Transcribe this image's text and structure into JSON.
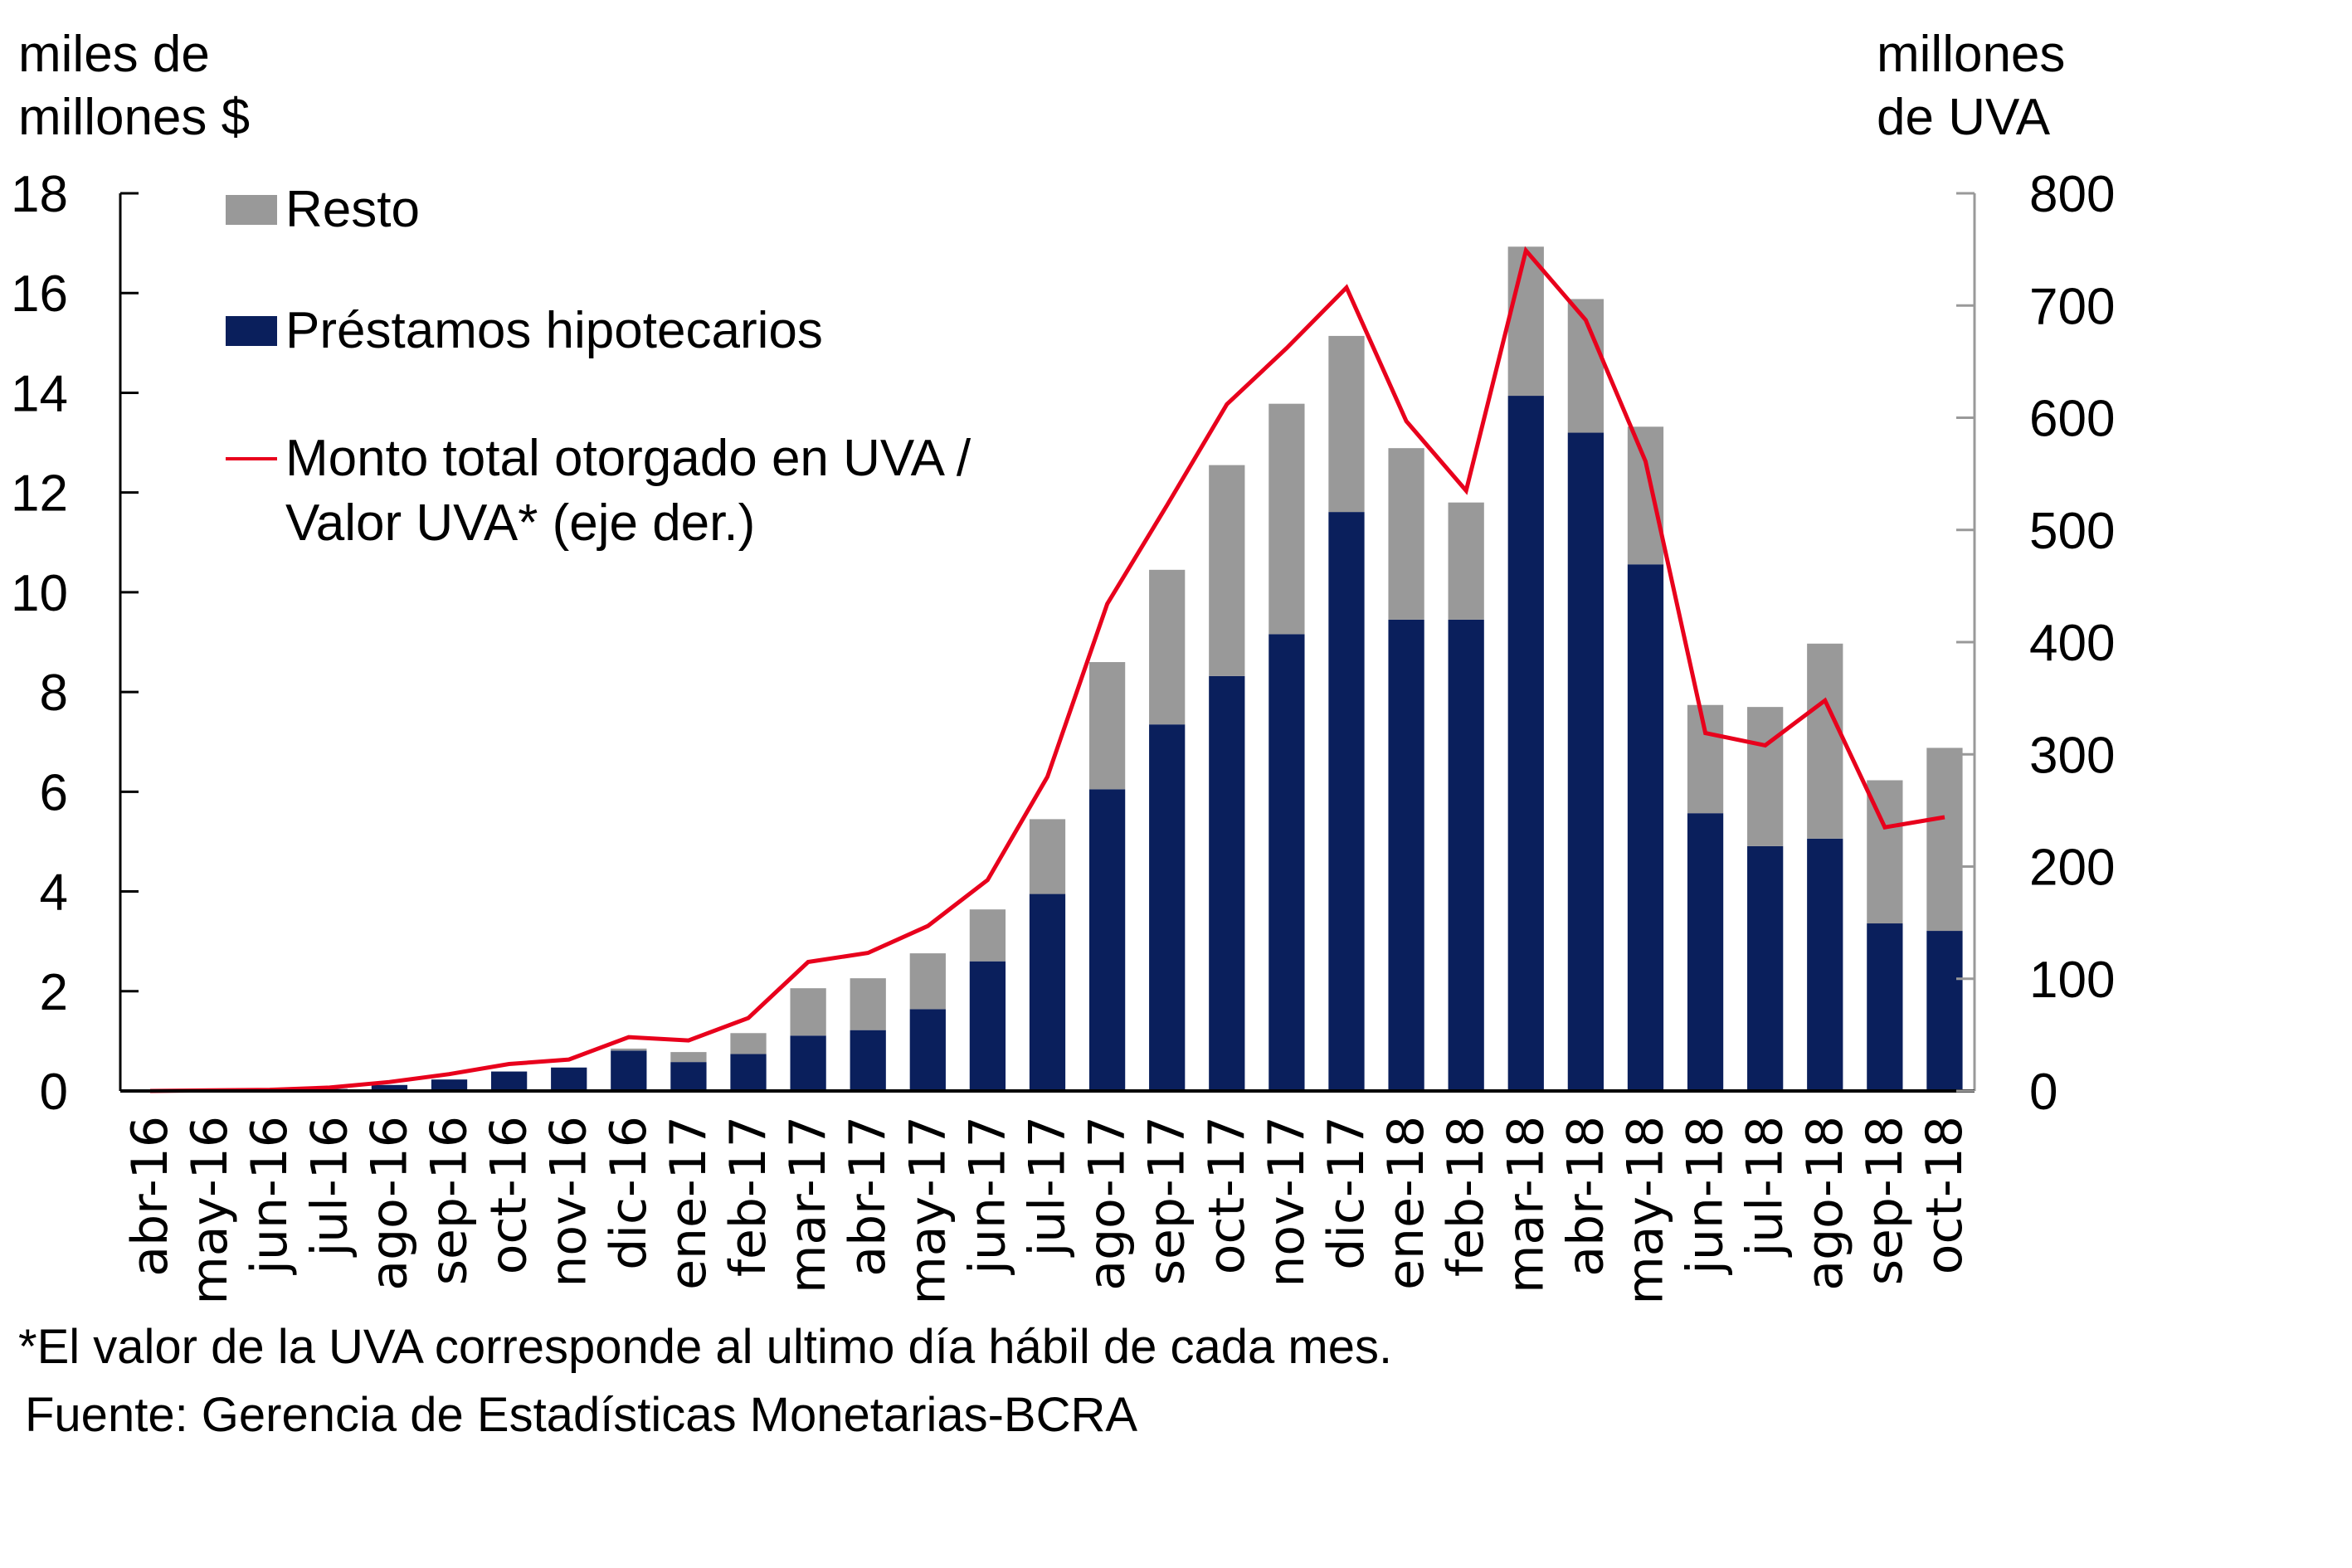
{
  "chart_data": {
    "type": "bar",
    "subtype": "stacked bar with line on secondary axis",
    "title": "",
    "y_left_label": [
      "miles de",
      "millones $"
    ],
    "y_right_label": [
      "millones",
      "de UVA"
    ],
    "ylim_left": [
      0,
      18
    ],
    "yticks_left": [
      0,
      2,
      4,
      6,
      8,
      10,
      12,
      14,
      16,
      18
    ],
    "ylim_right": [
      0,
      800
    ],
    "yticks_right": [
      0,
      100,
      200,
      300,
      400,
      500,
      600,
      700,
      800
    ],
    "grid": false,
    "legend_position": "top-left",
    "categories": [
      "abr-16",
      "may-16",
      "jun-16",
      "jul-16",
      "ago-16",
      "sep-16",
      "oct-16",
      "nov-16",
      "dic-16",
      "ene-17",
      "feb-17",
      "mar-17",
      "abr-17",
      "may-17",
      "jun-17",
      "jul-17",
      "ago-17",
      "sep-17",
      "oct-17",
      "nov-17",
      "dic-17",
      "ene-18",
      "feb-18",
      "mar-18",
      "abr-18",
      "may-18",
      "jun-18",
      "jul-18",
      "ago-18",
      "sep-18",
      "oct-18"
    ],
    "series": [
      {
        "name": "Préstamos hipotecarios",
        "type": "bar",
        "axis": "left",
        "color": "#0a1f5c",
        "values": [
          0.0,
          0.0,
          0.0,
          0.04,
          0.12,
          0.23,
          0.39,
          0.47,
          0.81,
          0.58,
          0.74,
          1.11,
          1.22,
          1.64,
          2.6,
          3.95,
          6.05,
          7.35,
          8.32,
          9.16,
          11.61,
          9.45,
          9.45,
          13.94,
          13.2,
          10.56,
          5.57,
          4.91,
          5.06,
          3.36,
          3.21
        ]
      },
      {
        "name": "Resto",
        "type": "bar",
        "axis": "left",
        "color": "#999999",
        "values": [
          0.0,
          0.0,
          0.0,
          0.0,
          0.0,
          0.0,
          0.0,
          0.0,
          0.04,
          0.2,
          0.42,
          0.95,
          1.04,
          1.12,
          1.04,
          1.5,
          2.55,
          3.1,
          4.23,
          4.62,
          3.53,
          3.44,
          2.35,
          2.99,
          2.68,
          2.76,
          2.17,
          2.79,
          3.91,
          2.87,
          3.67
        ]
      },
      {
        "name": "Monto total otorgado en UVA / Valor UVA* (eje der.)",
        "type": "line",
        "axis": "right",
        "color": "#e8001c",
        "values": [
          0,
          0.5,
          1,
          3,
          8,
          15,
          24,
          28,
          48,
          45,
          65,
          115,
          123,
          147,
          188,
          280,
          434,
          522,
          612,
          662,
          716,
          597,
          535,
          749,
          687,
          561,
          319,
          308,
          348,
          235,
          244
        ]
      }
    ],
    "legend": [
      {
        "label": "Resto",
        "kind": "bar",
        "color": "#999999"
      },
      {
        "label": "Préstamos hipotecarios",
        "kind": "bar",
        "color": "#0a1f5c"
      },
      {
        "label_lines": [
          "Monto total otorgado en UVA /",
          "Valor UVA* (eje der.)"
        ],
        "kind": "line",
        "color": "#e8001c"
      }
    ],
    "annotations": [
      "*El valor de la UVA corresponde al ultimo día hábil de cada mes.",
      "Fuente: Gerencia de Estadísticas Monetarias-BCRA"
    ]
  },
  "axis_titles": {
    "left_line1": "miles de",
    "left_line2": "millones $",
    "right_line1": "millones",
    "right_line2": "de UVA"
  },
  "legend": {
    "resto": "Resto",
    "prestamos": "Préstamos hipotecarios",
    "line_1": "Monto total otorgado en UVA /",
    "line_2": "Valor UVA* (eje der.)"
  },
  "footnotes": {
    "note": "*El valor de la UVA corresponde al ultimo día hábil de cada mes.",
    "source": "Fuente: Gerencia de Estadísticas Monetarias-BCRA"
  },
  "colors": {
    "navy": "#0a1f5c",
    "gray": "#999999",
    "red": "#e8001c",
    "right_axis": "#999999"
  }
}
